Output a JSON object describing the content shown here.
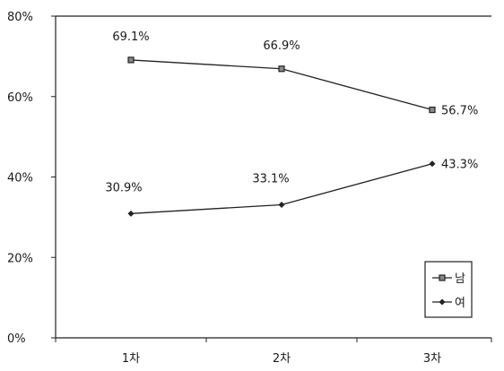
{
  "chart_data": {
    "type": "line",
    "categories": [
      "1차",
      "2차",
      "3차"
    ],
    "ylim": [
      0,
      80
    ],
    "yticks": [
      0,
      20,
      40,
      60,
      80
    ],
    "ytick_labels": [
      "0%",
      "20%",
      "40%",
      "60%",
      "80%"
    ],
    "grid": false,
    "legend_position": "bottom-right",
    "series": [
      {
        "name": "남",
        "values": [
          69.1,
          66.9,
          56.7
        ],
        "labels": [
          "69.1%",
          "66.9%",
          "56.7%"
        ],
        "marker": "square",
        "color": "#222222"
      },
      {
        "name": "여",
        "values": [
          30.9,
          33.1,
          43.3
        ],
        "labels": [
          "30.9%",
          "33.1%",
          "43.3%"
        ],
        "marker": "diamond",
        "color": "#222222"
      }
    ]
  }
}
